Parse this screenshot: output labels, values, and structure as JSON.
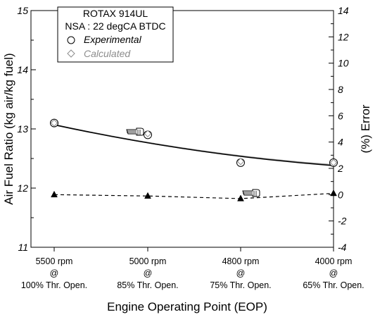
{
  "chart_data": {
    "type": "line",
    "legend": {
      "title_lines": [
        "ROTAX 914UL",
        "NSA : 22 degCA BTDC"
      ],
      "entries": [
        {
          "label": "Experimental",
          "marker": "circle",
          "color": "#000000"
        },
        {
          "label": "Calculated",
          "marker": "diamond",
          "color": "#8c8c8c"
        }
      ],
      "placement": "top-left"
    },
    "categories": [
      {
        "rpm": "5500 rpm",
        "at": "@",
        "throttle": "100% Thr. Open."
      },
      {
        "rpm": "5000 rpm",
        "at": "@",
        "throttle": "85% Thr. Open."
      },
      {
        "rpm": "4800 rpm",
        "at": "@",
        "throttle": "75% Thr. Open."
      },
      {
        "rpm": "4000 rpm",
        "at": "@",
        "throttle": "65% Thr. Open."
      }
    ],
    "xlabel": "Engine Operating Point (EOP)",
    "ylabel_left": "Air Fuel Ratio (kg air/kg fuel)",
    "ylabel_right": "(%) Error",
    "ylim_left": [
      11,
      15
    ],
    "ylim_right": [
      -4,
      14
    ],
    "yticks_left": [
      "11",
      "12",
      "13",
      "14",
      "15"
    ],
    "yticks_right": [
      "-4",
      "-2",
      "0",
      "2",
      "4",
      "6",
      "8",
      "10",
      "12",
      "14"
    ],
    "series": [
      {
        "name": "Experimental",
        "axis": "left",
        "values": [
          13.1,
          12.9,
          12.43,
          12.43
        ]
      },
      {
        "name": "Calculated",
        "axis": "left",
        "values": [
          13.1,
          12.92,
          12.45,
          12.43
        ]
      },
      {
        "axis": "right",
        "values": [
          0.0,
          -0.1,
          -0.3,
          0.1
        ]
      }
    ],
    "trend_lines": {
      "experimental_end": [
        13.07,
        12.38
      ],
      "calculated_end": [
        13.07,
        12.39
      ]
    },
    "colors": {
      "experimental": "#000000",
      "calculated": "#8c8c8c",
      "error": "#000000"
    }
  }
}
